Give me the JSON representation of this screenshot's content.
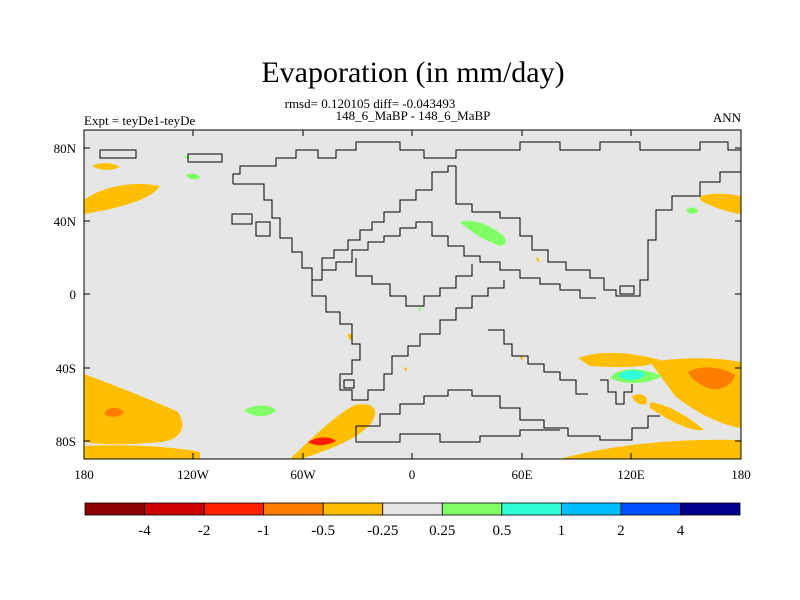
{
  "title": "Evaporation (in mm/day)",
  "stats": "rmsd= 0.120105 diff= -0.043493",
  "case": "148_6_MaBP - 148_6_MaBP",
  "expt": "Expt = teyDe1-teyDe",
  "season": "ANN",
  "lat_ticks": [
    "80N",
    "40N",
    "0",
    "40S",
    "80S"
  ],
  "lon_ticks": [
    "180",
    "120W",
    "60W",
    "0",
    "60E",
    "120E",
    "180"
  ],
  "colorbar": {
    "colors": [
      "#8b0000",
      "#cd0000",
      "#ff2000",
      "#ff7d00",
      "#ffbf00",
      "#e6e6e6",
      "#80ff66",
      "#2fffd7",
      "#00bfff",
      "#0050ff",
      "#00008b"
    ],
    "labels": [
      "-4",
      "-2",
      "-1",
      "-0.5",
      "-0.25",
      "0.25",
      "0.5",
      "1",
      "2",
      "4"
    ]
  },
  "map_colors": {
    "background": "#e6e6e6",
    "coast": "#000000",
    "neg_light": "#ffbf00",
    "neg_mid": "#ff7d00",
    "neg_strong": "#ff2000",
    "pos_light": "#80ff66",
    "pos_mid": "#2fffd7"
  }
}
